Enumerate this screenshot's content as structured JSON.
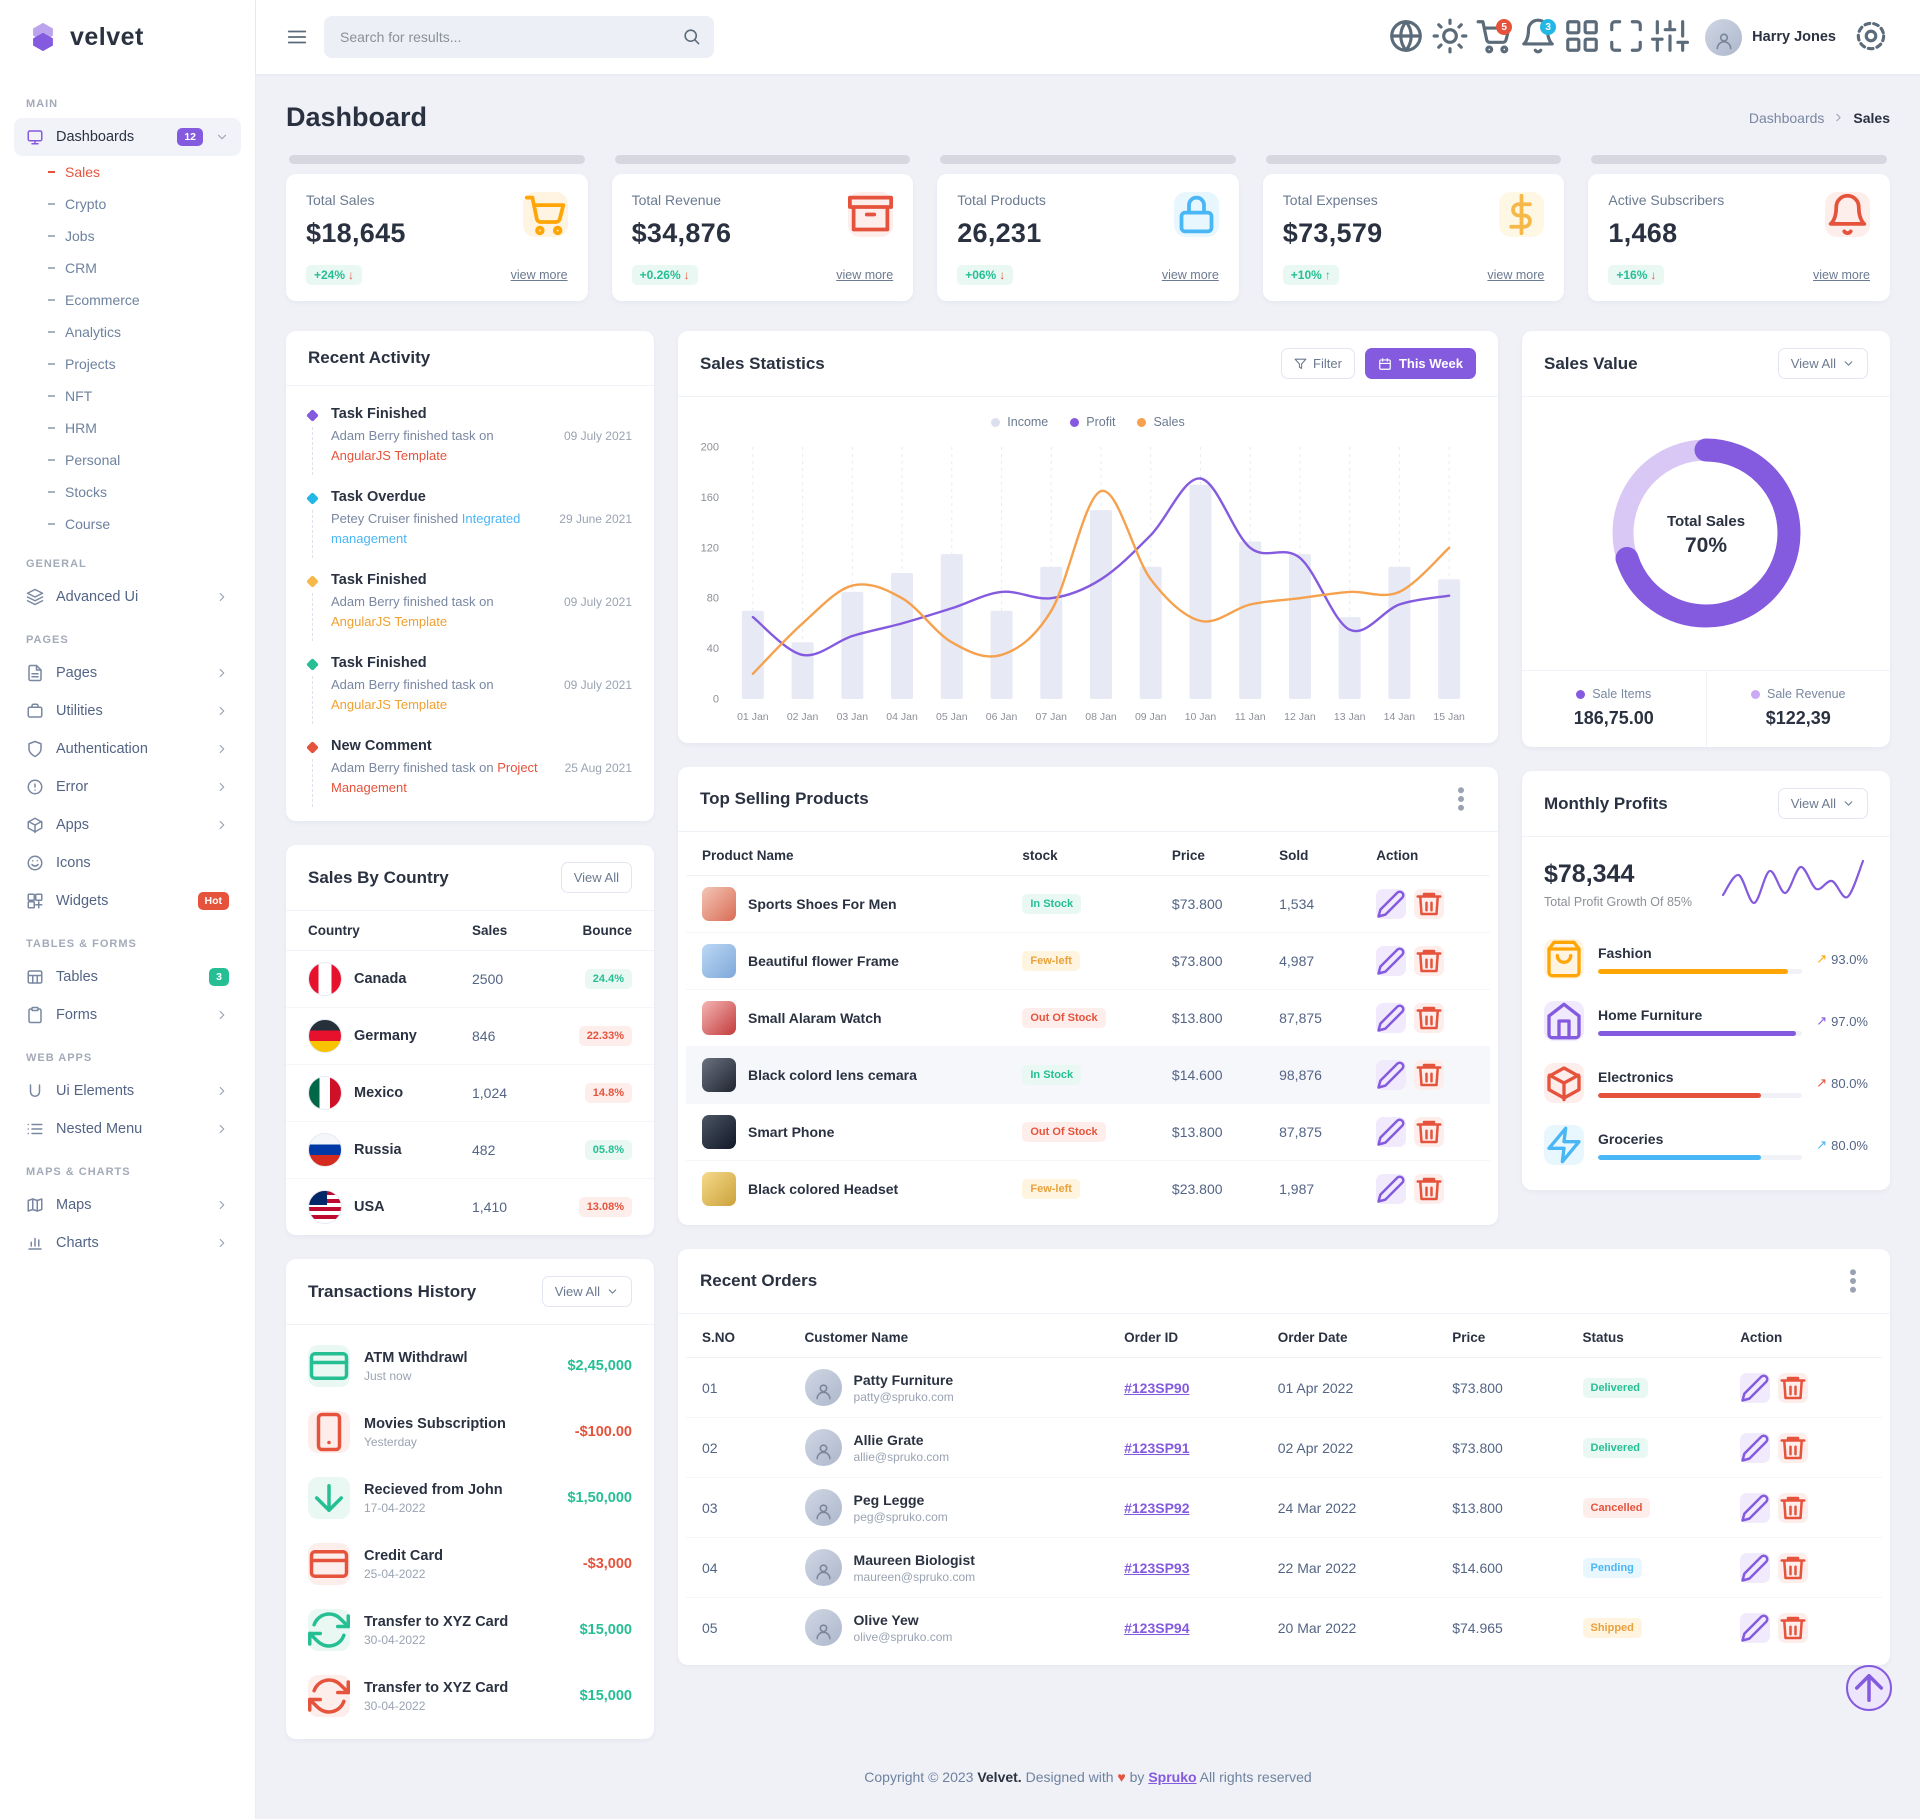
{
  "colors": {
    "primary": "#845adf",
    "secondary": "#23b7e5",
    "success": "#26bf94",
    "danger": "#e6533c",
    "warning": "#f5b849",
    "info": "#49b6f5",
    "orange": "#ffa505",
    "page-bg": "#f0f1f7"
  },
  "brand": {
    "name": "velvet"
  },
  "topbar": {
    "search_placeholder": "Search for results...",
    "cart_badge": "5",
    "bell_badge": "3",
    "user_name": "Harry Jones"
  },
  "sidebar": {
    "groups": [
      {
        "label": "MAIN",
        "items": [
          {
            "icon": "monitor-icon",
            "label": "Dashboards",
            "badge": "12",
            "badge_bg": "#845adf",
            "chevron": "chevron-down-icon",
            "active": "true"
          }
        ]
      },
      {
        "label": "GENERAL",
        "items": [
          {
            "icon": "layers-icon",
            "label": "Advanced Ui",
            "chevron": "chevron-right-icon"
          }
        ]
      },
      {
        "label": "PAGES",
        "items": [
          {
            "icon": "file-icon",
            "label": "Pages",
            "chevron": "chevron-right-icon"
          },
          {
            "icon": "briefcase-icon",
            "label": "Utilities",
            "chevron": "chevron-right-icon"
          },
          {
            "icon": "shield-icon",
            "label": "Authentication",
            "chevron": "chevron-right-icon"
          },
          {
            "icon": "alert-circle-icon",
            "label": "Error",
            "chevron": "chevron-right-icon"
          },
          {
            "icon": "box-icon",
            "label": "Apps",
            "chevron": "chevron-right-icon"
          },
          {
            "icon": "smile-icon",
            "label": "Icons"
          },
          {
            "icon": "widgets-icon",
            "label": "Widgets",
            "badge": "Hot",
            "badge_bg": "#e6533c"
          }
        ]
      },
      {
        "label": "TABLES & FORMS",
        "items": [
          {
            "icon": "table-icon",
            "label": "Tables",
            "badge": "3",
            "badge_bg": "#26bf94"
          },
          {
            "icon": "clipboard-icon",
            "label": "Forms",
            "chevron": "chevron-right-icon"
          }
        ]
      },
      {
        "label": "WEB APPS",
        "items": [
          {
            "icon": "u-icon",
            "label": "Ui Elements",
            "chevron": "chevron-right-icon"
          },
          {
            "icon": "list-icon",
            "label": "Nested Menu",
            "chevron": "chevron-right-icon"
          }
        ]
      },
      {
        "label": "MAPS & CHARTS",
        "items": [
          {
            "icon": "map-icon",
            "label": "Maps",
            "chevron": "chevron-right-icon"
          },
          {
            "icon": "bar-chart-icon",
            "label": "Charts",
            "chevron": "chevron-right-icon"
          }
        ]
      }
    ],
    "submenu": [
      {
        "label": "Sales",
        "active": "true"
      },
      {
        "label": "Crypto"
      },
      {
        "label": "Jobs"
      },
      {
        "label": "CRM"
      },
      {
        "label": "Ecommerce"
      },
      {
        "label": "Analytics"
      },
      {
        "label": "Projects"
      },
      {
        "label": "NFT"
      },
      {
        "label": "HRM"
      },
      {
        "label": "Personal"
      },
      {
        "label": "Stocks"
      },
      {
        "label": "Course"
      }
    ]
  },
  "page": {
    "title": "Dashboard",
    "breadcrumb_parent": "Dashboards",
    "breadcrumb_current": "Sales"
  },
  "stats": [
    {
      "label": "Total Sales",
      "value": "$18,645",
      "delta": "+24%",
      "arrow": "↓",
      "arrow_color": "#e6533c",
      "link": "view more",
      "icon": "cart-icon",
      "icon_color": "#ffa505",
      "icon_bg": "#fff4e1"
    },
    {
      "label": "Total Revenue",
      "value": "$34,876",
      "delta": "+0.26%",
      "arrow": "↓",
      "arrow_color": "#e6533c",
      "link": "view more",
      "icon": "archive-icon",
      "icon_color": "#e6533c",
      "icon_bg": "#fdeeec"
    },
    {
      "label": "Total Products",
      "value": "26,231",
      "delta": "+06%",
      "arrow": "↓",
      "arrow_color": "#e6533c",
      "link": "view more",
      "icon": "lock-icon",
      "icon_color": "#49b6f5",
      "icon_bg": "#e8f6fe"
    },
    {
      "label": "Total Expenses",
      "value": "$73,579",
      "delta": "+10%",
      "arrow": "↑",
      "arrow_color": "#26bf94",
      "link": "view more",
      "icon": "dollar-icon",
      "icon_color": "#f5b849",
      "icon_bg": "#fef7e4"
    },
    {
      "label": "Active Subscribers",
      "value": "1,468",
      "delta": "+16%",
      "arrow": "↓",
      "arrow_color": "#e6533c",
      "link": "view more",
      "icon": "bell-icon",
      "icon_color": "#e6533c",
      "icon_bg": "#fdeeec"
    }
  ],
  "recent_activity": {
    "title": "Recent Activity",
    "items": [
      {
        "dot": "#845adf",
        "title": "Task Finished",
        "text_pre": "Adam Berry finished task on ",
        "link": "AngularJS Template",
        "link_color": "#e6533c",
        "date": "09 July 2021"
      },
      {
        "dot": "#23b7e5",
        "title": "Task Overdue",
        "text_pre": "Petey Cruiser finished ",
        "link": "Integrated management",
        "link_color": "#49b6f5",
        "date": "29 June 2021"
      },
      {
        "dot": "#f5b849",
        "title": "Task Finished",
        "text_pre": "Adam Berry finished task on ",
        "link": "AngularJS Template",
        "link_color": "#f0a030",
        "date": "09 July 2021"
      },
      {
        "dot": "#26bf94",
        "title": "Task Finished",
        "text_pre": "Adam Berry finished task on ",
        "link": "AngularJS Template",
        "link_color": "#f0a030",
        "date": "09 July 2021"
      },
      {
        "dot": "#e6533c",
        "title": "New Comment",
        "text_pre": "Adam Berry finished task on ",
        "link": "Project Management",
        "link_color": "#e6533c",
        "date": "25 Aug 2021"
      }
    ]
  },
  "sales_statistics": {
    "title": "Sales Statistics",
    "filter_label": "Filter",
    "range_label": "This Week",
    "legend": [
      {
        "label": "Income",
        "color": "#dcdfee"
      },
      {
        "label": "Profit",
        "color": "#845adf"
      },
      {
        "label": "Sales",
        "color": "#f5a14d"
      }
    ]
  },
  "sales_value": {
    "title": "Sales Value",
    "view_all": "View All",
    "center_label": "Total Sales",
    "center_value": "70%",
    "legend": [
      {
        "label": "Sale Items",
        "value": "186,75.00",
        "color": "#845adf"
      },
      {
        "label": "Sale Revenue",
        "value": "$122,39",
        "color": "#cbaaf5"
      }
    ]
  },
  "sales_by_country": {
    "title": "Sales By Country",
    "view_all": "View All",
    "headers": {
      "country": "Country",
      "sales": "Sales",
      "bounce": "Bounce"
    },
    "rows": [
      {
        "country": "Canada",
        "flag": "canada",
        "sales": "2500",
        "bounce": "24.4%",
        "bounce_type": "success"
      },
      {
        "country": "Germany",
        "flag": "germany",
        "sales": "846",
        "bounce": "22.33%",
        "bounce_type": "danger"
      },
      {
        "country": "Mexico",
        "flag": "mexico",
        "sales": "1,024",
        "bounce": "14.8%",
        "bounce_type": "danger"
      },
      {
        "country": "Russia",
        "flag": "russia",
        "sales": "482",
        "bounce": "05.8%",
        "bounce_type": "success"
      },
      {
        "country": "USA",
        "flag": "usa",
        "sales": "1,410",
        "bounce": "13.08%",
        "bounce_type": "danger"
      }
    ]
  },
  "top_selling": {
    "title": "Top Selling Products",
    "headers": {
      "name": "Product Name",
      "stock": "stock",
      "price": "Price",
      "sold": "Sold",
      "action": "Action"
    },
    "rows": [
      {
        "name": "Sports Shoes For Men",
        "thumb": "linear-gradient(135deg,#f3c6b5,#d96c55)",
        "stock": "In Stock",
        "stock_type": "success",
        "price": "$73.800",
        "sold": "1,534"
      },
      {
        "name": "Beautiful flower Frame",
        "thumb": "linear-gradient(135deg,#bcd8f5,#7fa8d9)",
        "stock": "Few-left",
        "stock_type": "warning",
        "price": "$73.800",
        "sold": "4,987"
      },
      {
        "name": "Small Alaram Watch",
        "thumb": "linear-gradient(135deg,#f5b5b5,#c23b3b)",
        "stock": "Out Of Stock",
        "stock_type": "danger",
        "price": "$13.800",
        "sold": "87,875"
      },
      {
        "name": "Black colord lens cemara",
        "thumb": "linear-gradient(135deg,#6b7280,#1f2430)",
        "stock": "In Stock",
        "stock_type": "success",
        "price": "$14.600",
        "sold": "98,876",
        "highlight": "true"
      },
      {
        "name": "Smart Phone",
        "thumb": "linear-gradient(135deg,#4b5563,#111827)",
        "stock": "Out Of Stock",
        "stock_type": "danger",
        "price": "$13.800",
        "sold": "87,875"
      },
      {
        "name": "Black colored Headset",
        "thumb": "linear-gradient(135deg,#f7d98b,#caa23a)",
        "stock": "Few-left",
        "stock_type": "warning",
        "price": "$23.800",
        "sold": "1,987"
      }
    ]
  },
  "monthly_profits": {
    "title": "Monthly Profits",
    "view_all": "View All",
    "amount": "$78,344",
    "subtitle": "Total Profit Growth Of 85%",
    "categories": [
      {
        "icon": "bag-icon",
        "label": "Fashion",
        "arrow": "↗",
        "pct": "93.0%",
        "color": "#ffa505",
        "icon_bg": "#fff4e1"
      },
      {
        "icon": "home-icon",
        "label": "Home Furniture",
        "arrow": "↗",
        "pct": "97.0%",
        "color": "#845adf",
        "icon_bg": "#f1eafc"
      },
      {
        "icon": "box-icon",
        "label": "Electronics",
        "arrow": "↗",
        "pct": "80.0%",
        "color": "#e6533c",
        "icon_bg": "#fdeeec"
      },
      {
        "icon": "zap-icon",
        "label": "Groceries",
        "arrow": "↗",
        "pct": "80.0%",
        "color": "#49b6f5",
        "icon_bg": "#e8f6fe"
      }
    ]
  },
  "transactions": {
    "title": "Transactions History",
    "view_all": "View All",
    "items": [
      {
        "icon": "card-icon",
        "label": "ATM Withdrawl",
        "date": "Just now",
        "amount": "$2,45,000",
        "amount_color": "#26bf94",
        "icon_color": "#26bf94",
        "icon_bg": "#e9f8f3"
      },
      {
        "icon": "phone-icon",
        "label": "Movies Subscription",
        "date": "Yesterday",
        "amount": "-$100.00",
        "amount_color": "#e6533c",
        "icon_color": "#e6533c",
        "icon_bg": "#fdeeec"
      },
      {
        "icon": "arrow-down-icon",
        "label": "Recieved from John",
        "date": "17-04-2022",
        "amount": "$1,50,000",
        "amount_color": "#26bf94",
        "icon_color": "#26bf94",
        "icon_bg": "#e9f8f3"
      },
      {
        "icon": "card-icon",
        "label": "Credit Card",
        "date": "25-04-2022",
        "amount": "-$3,000",
        "amount_color": "#e6533c",
        "icon_color": "#e6533c",
        "icon_bg": "#fdeeec"
      },
      {
        "icon": "refresh-icon",
        "label": "Transfer to XYZ Card",
        "date": "30-04-2022",
        "amount": "$15,000",
        "amount_color": "#26bf94",
        "icon_color": "#26bf94",
        "icon_bg": "#e9f8f3"
      },
      {
        "icon": "refresh-icon",
        "label": "Transfer to XYZ Card",
        "date": "30-04-2022",
        "amount": "$15,000",
        "amount_color": "#26bf94",
        "icon_color": "#e6533c",
        "icon_bg": "#fdeeec"
      }
    ]
  },
  "recent_orders": {
    "title": "Recent Orders",
    "headers": {
      "sno": "S.NO",
      "customer": "Customer Name",
      "order_id": "Order ID",
      "date": "Order Date",
      "price": "Price",
      "status": "Status",
      "action": "Action"
    },
    "rows": [
      {
        "sno": "01",
        "name": "Patty Furniture",
        "email": "patty@spruko.com",
        "order_id": "#123SP90",
        "date": "01 Apr 2022",
        "price": "$73.800",
        "status": "Delivered",
        "status_type": "success"
      },
      {
        "sno": "02",
        "name": "Allie Grate",
        "email": "allie@spruko.com",
        "order_id": "#123SP91",
        "date": "02 Apr 2022",
        "price": "$73.800",
        "status": "Delivered",
        "status_type": "success"
      },
      {
        "sno": "03",
        "name": "Peg Legge",
        "email": "peg@spruko.com",
        "order_id": "#123SP92",
        "date": "24 Mar 2022",
        "price": "$13.800",
        "status": "Cancelled",
        "status_type": "danger"
      },
      {
        "sno": "04",
        "name": "Maureen Biologist",
        "email": "maureen@spruko.com",
        "order_id": "#123SP93",
        "date": "22 Mar 2022",
        "price": "$14.600",
        "status": "Pending",
        "status_type": "info"
      },
      {
        "sno": "05",
        "name": "Olive Yew",
        "email": "olive@spruko.com",
        "order_id": "#123SP94",
        "date": "20 Mar 2022",
        "price": "$74.965",
        "status": "Shipped",
        "status_type": "warning"
      }
    ]
  },
  "footer": {
    "pre": "Copyright © 2023",
    "brand": "Velvet.",
    "mid": "Designed with",
    "heart": "♥",
    "by": "by",
    "link": "Spruko",
    "post": "All rights reserved"
  },
  "chart_data": [
    {
      "id": "sales-statistics",
      "type": "bar",
      "title": "Sales Statistics",
      "x": [
        "01 Jan",
        "02 Jan",
        "03 Jan",
        "04 Jan",
        "05 Jan",
        "06 Jan",
        "07 Jan",
        "08 Jan",
        "09 Jan",
        "10 Jan",
        "11 Jan",
        "12 Jan",
        "13 Jan",
        "14 Jan",
        "15 Jan"
      ],
      "ylim": [
        0,
        200
      ],
      "yticks": [
        0,
        40,
        80,
        120,
        160,
        200
      ],
      "grid": "vertical-dashed",
      "legend_position": "top",
      "series": [
        {
          "name": "Income",
          "type": "bar",
          "color": "#e7e9f4",
          "values": [
            70,
            45,
            85,
            100,
            115,
            70,
            105,
            150,
            105,
            170,
            125,
            115,
            65,
            105,
            95
          ]
        },
        {
          "name": "Profit",
          "type": "line",
          "color": "#845adf",
          "values": [
            65,
            35,
            50,
            60,
            72,
            85,
            80,
            95,
            130,
            175,
            120,
            112,
            55,
            75,
            82
          ]
        },
        {
          "name": "Sales",
          "type": "line",
          "color": "#f5a14d",
          "values": [
            20,
            60,
            90,
            80,
            45,
            35,
            70,
            165,
            95,
            62,
            75,
            80,
            85,
            85,
            120
          ]
        }
      ]
    },
    {
      "id": "sales-value-donut",
      "type": "pie",
      "title": "Sales Value",
      "value_pct": 70,
      "center_label": "Total Sales",
      "color": "#845adf",
      "track_color": "#d9c8f6",
      "slices": [
        {
          "label": "Sale Items",
          "pct": 70,
          "color": "#845adf"
        },
        {
          "label": "Sale Revenue",
          "pct": 30,
          "color": "#d9c8f6"
        }
      ]
    },
    {
      "id": "monthly-profit-spark",
      "type": "line",
      "title": "Monthly Profits Trend",
      "color": "#845adf",
      "values": [
        38,
        58,
        30,
        62,
        40,
        66,
        44,
        52,
        36,
        72
      ]
    }
  ]
}
